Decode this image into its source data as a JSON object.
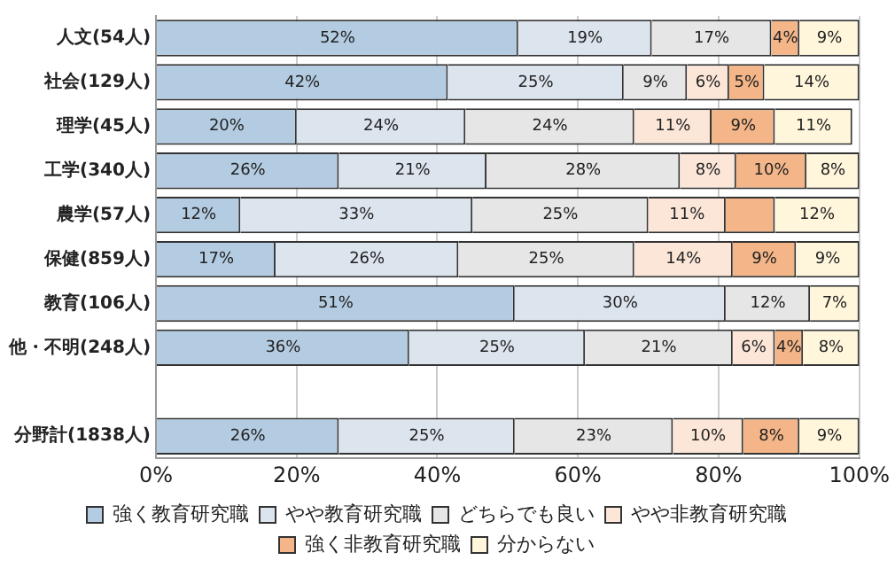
{
  "chart_data": {
    "type": "bar",
    "orientation": "horizontal",
    "stacked": true,
    "categories": [
      "人文(54人)",
      "社会(129人)",
      "理学(45人)",
      "工学(340人)",
      "農学(57人)",
      "保健(859人)",
      "教育(106人)",
      "他・不明(248人)",
      null,
      "分野計(1838人)"
    ],
    "xlim": [
      0,
      100
    ],
    "xticks": [
      {
        "value": 0,
        "label": "0%"
      },
      {
        "value": 20,
        "label": "20%"
      },
      {
        "value": 40,
        "label": "40%"
      },
      {
        "value": 60,
        "label": "60%"
      },
      {
        "value": 80,
        "label": "80%"
      },
      {
        "value": 100,
        "label": "100%"
      }
    ],
    "grid": "x",
    "legend": "bottom",
    "series": [
      {
        "name": "強く教育研究職",
        "color": "#b4cce2",
        "values": [
          51.5,
          41.5,
          20,
          26,
          12,
          17,
          51,
          36,
          null,
          26
        ],
        "value_labels": [
          "52%",
          "42%",
          "20%",
          "26%",
          "12%",
          "17%",
          "51%",
          "36%",
          null,
          "26%"
        ]
      },
      {
        "name": "やや教育研究職",
        "color": "#dce4ee",
        "values": [
          19,
          25,
          24,
          21,
          33,
          26,
          30,
          25,
          null,
          25
        ],
        "value_labels": [
          "19%",
          "25%",
          "24%",
          "21%",
          "33%",
          "26%",
          "30%",
          "25%",
          null,
          "25%"
        ]
      },
      {
        "name": "どちらでも良い",
        "color": "#e6e6e6",
        "values": [
          17,
          9,
          24,
          27.5,
          25,
          25,
          12,
          21,
          null,
          22.5
        ],
        "value_labels": [
          "17%",
          "9%",
          "24%",
          "28%",
          "25%",
          "25%",
          "12%",
          "21%",
          null,
          "23%"
        ]
      },
      {
        "name": "やや非教育研究職",
        "color": "#fbe6d8",
        "values": [
          null,
          6,
          11,
          8,
          11,
          14,
          null,
          6,
          null,
          10
        ],
        "value_labels": [
          null,
          "6%",
          "11%",
          "8%",
          "11%",
          "14%",
          null,
          "6%",
          null,
          "10%"
        ]
      },
      {
        "name": "強く非教育研究職",
        "color": "#f4b688",
        "values": [
          4,
          5,
          9,
          10,
          7,
          9,
          null,
          4,
          null,
          8
        ],
        "value_labels": [
          "4%",
          "5%",
          "9%",
          "10%",
          null,
          "9%",
          null,
          "4%",
          null,
          "8%"
        ]
      },
      {
        "name": "分からない",
        "color": "#fff6dc",
        "values": [
          8.5,
          13.5,
          11,
          7.5,
          12,
          9,
          7,
          8,
          null,
          8.5
        ],
        "value_labels": [
          "9%",
          "14%",
          "11%",
          "8%",
          "12%",
          "9%",
          "7%",
          "8%",
          null,
          "9%"
        ]
      }
    ]
  }
}
